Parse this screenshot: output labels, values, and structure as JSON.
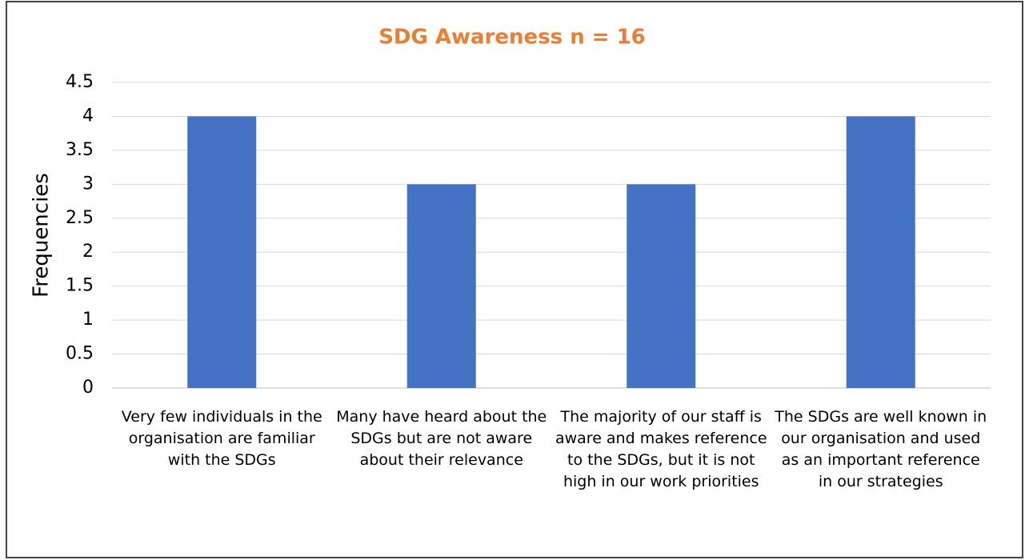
{
  "chart_data": {
    "type": "bar",
    "title": "SDG Awareness n = 16",
    "y_label": "Frequencies",
    "categories": [
      "Very few individuals in the organisation are familiar with the SDGs",
      "Many have heard about the SDGs but are not aware about their relevance",
      "The majority of our staff is aware and makes reference to the SDGs, but it is not high in our work priorities",
      "The SDGs are well known in our organisation and used as an important reference in our strategies"
    ],
    "values": [
      4,
      3,
      3,
      4
    ],
    "color": "#4472c4",
    "ylim": [
      0,
      4.5
    ],
    "yticks": [
      0,
      0.5,
      1,
      1.5,
      2,
      2.5,
      3,
      3.5,
      4,
      4.5
    ],
    "grid": true
  }
}
